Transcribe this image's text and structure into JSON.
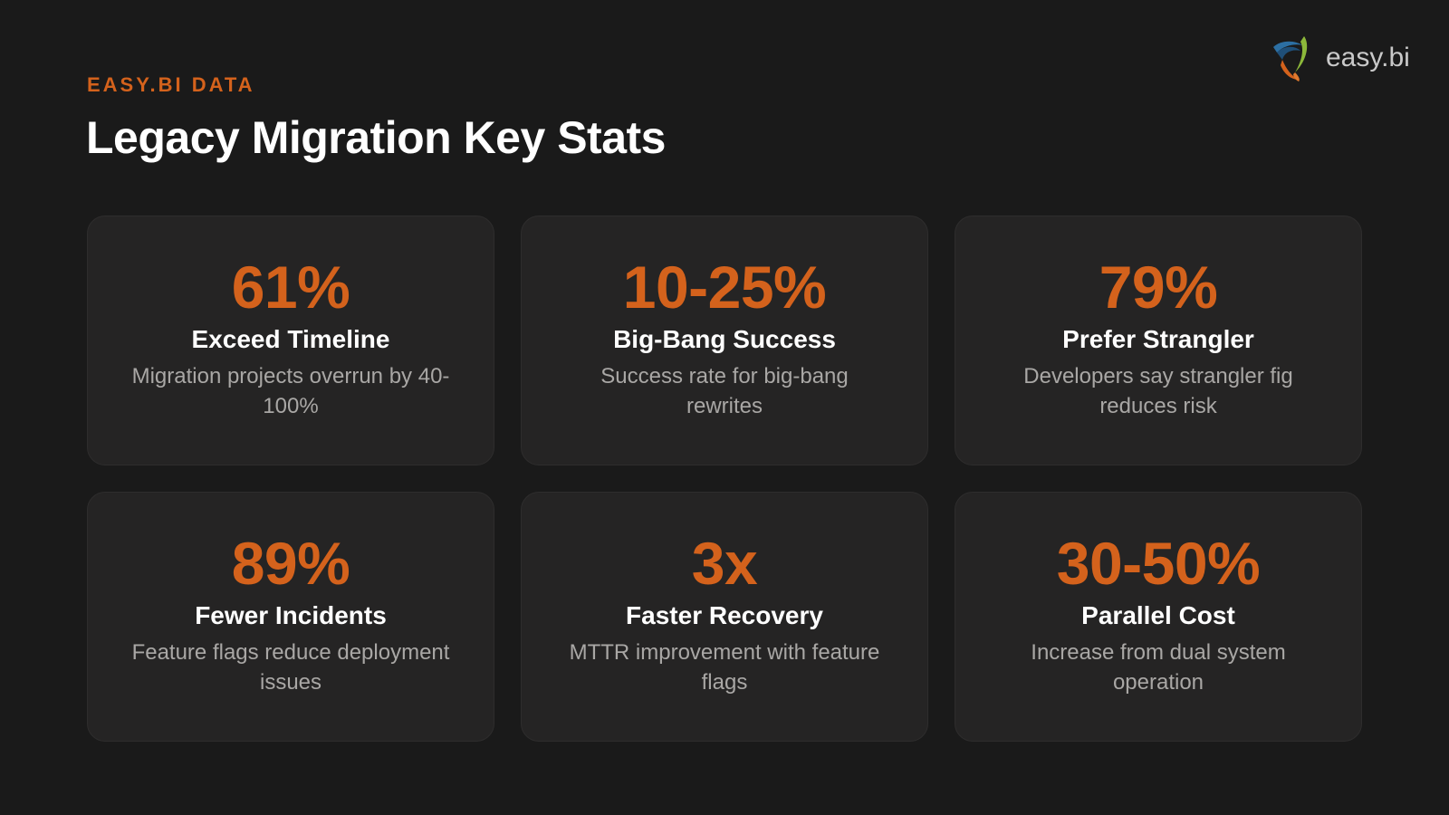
{
  "header": {
    "eyebrow": "EASY.BI DATA",
    "title": "Legacy Migration Key Stats"
  },
  "logo": {
    "text": "easy.bi",
    "icon": "easybi-logo-icon",
    "colors": {
      "blue": "#2c6fa3",
      "green": "#8cb83a",
      "orange": "#d4621c"
    }
  },
  "accent_color": "#d4621c",
  "stats": [
    {
      "value": "61%",
      "label": "Exceed Timeline",
      "description": "Migration projects overrun by 40-100%"
    },
    {
      "value": "10-25%",
      "label": "Big-Bang Success",
      "description": "Success rate for big-bang rewrites"
    },
    {
      "value": "79%",
      "label": "Prefer Strangler",
      "description": "Developers say strangler fig reduces risk"
    },
    {
      "value": "89%",
      "label": "Fewer Incidents",
      "description": "Feature flags reduce deployment issues"
    },
    {
      "value": "3x",
      "label": "Faster Recovery",
      "description": "MTTR improvement with feature flags"
    },
    {
      "value": "30-50%",
      "label": "Parallel Cost",
      "description": "Increase from dual system operation"
    }
  ]
}
